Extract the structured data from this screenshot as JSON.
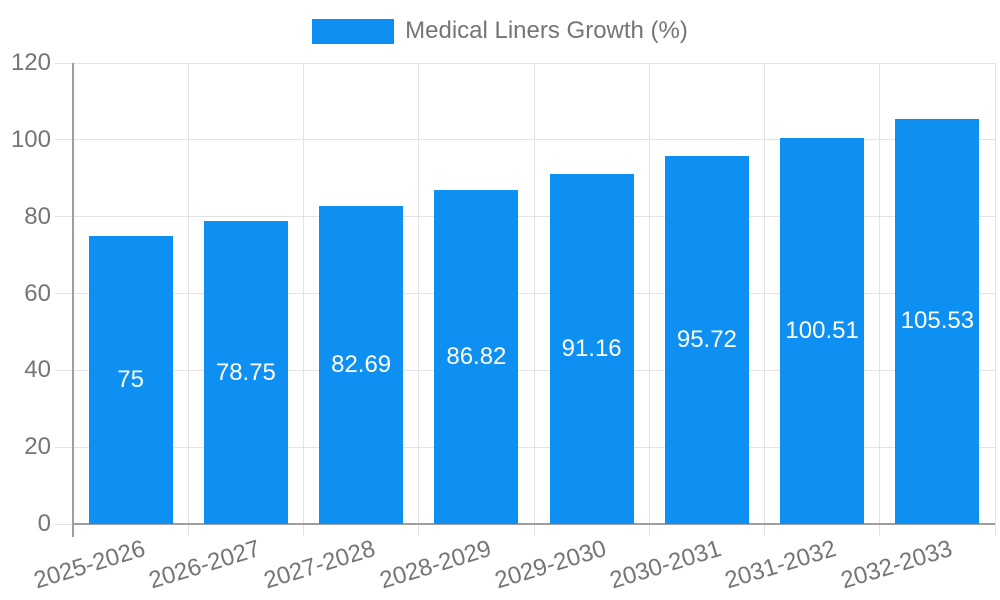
{
  "chart_data": {
    "type": "bar",
    "title": "Medical Liners Growth (%)",
    "categories": [
      "2025-2026",
      "2026-2027",
      "2027-2028",
      "2028-2029",
      "2029-2030",
      "2030-2031",
      "2031-2032",
      "2032-2033"
    ],
    "series": [
      {
        "name": "Medical Liners Growth (%)",
        "values": [
          75,
          78.75,
          82.69,
          86.82,
          91.16,
          95.72,
          100.51,
          105.53
        ]
      }
    ],
    "value_labels": [
      "75",
      "78.75",
      "82.69",
      "86.82",
      "91.16",
      "95.72",
      "100.51",
      "105.53"
    ],
    "xlabel": "",
    "ylabel": "",
    "ylim": [
      0,
      120
    ],
    "yticks": [
      0,
      20,
      40,
      60,
      80,
      100,
      120
    ],
    "grid": true,
    "legend_position": "top"
  },
  "colors": {
    "bar": "#0d90f2",
    "grid": "#e3e3e3",
    "axis": "#9e9e9e",
    "tick_text": "#757575",
    "value_text": "#ffffff",
    "background": "#ffffff"
  }
}
